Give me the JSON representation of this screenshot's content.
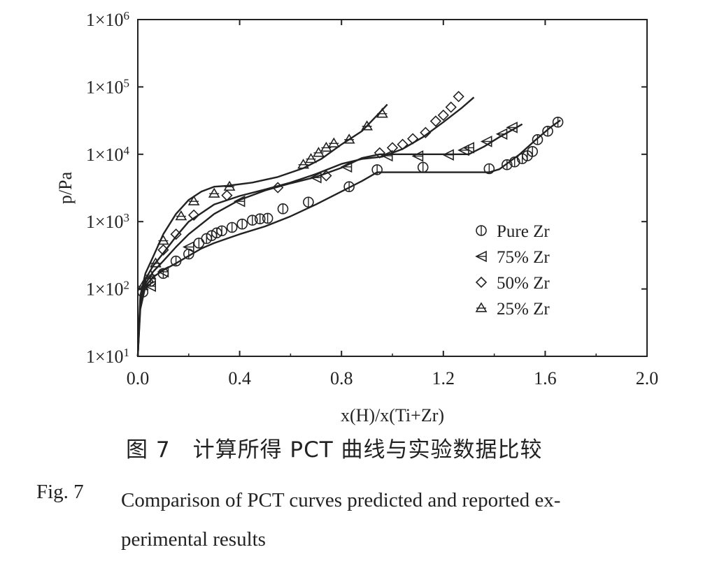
{
  "chart_data": {
    "type": "scatter",
    "xlabel": "x(H)/x(Ti+Zr)",
    "ylabel": "p/Pa",
    "xlim": [
      0.0,
      2.0
    ],
    "ylim": [
      10,
      1000000
    ],
    "yscale": "log",
    "x_ticks": [
      "0.0",
      "0.4",
      "0.8",
      "1.2",
      "1.6",
      "2.0"
    ],
    "y_ticks": [
      {
        "base": "1×10",
        "exp": "1"
      },
      {
        "base": "1×10",
        "exp": "2"
      },
      {
        "base": "1×10",
        "exp": "3"
      },
      {
        "base": "1×10",
        "exp": "4"
      },
      {
        "base": "1×10",
        "exp": "5"
      },
      {
        "base": "1×10",
        "exp": "6"
      }
    ],
    "legend_position": "right",
    "series": [
      {
        "name": "Pure Zr",
        "marker": "circle",
        "points": [
          [
            0.02,
            90
          ],
          [
            0.05,
            130
          ],
          [
            0.1,
            170
          ],
          [
            0.15,
            260
          ],
          [
            0.2,
            330
          ],
          [
            0.24,
            480
          ],
          [
            0.27,
            560
          ],
          [
            0.29,
            620
          ],
          [
            0.31,
            680
          ],
          [
            0.33,
            730
          ],
          [
            0.37,
            820
          ],
          [
            0.41,
            920
          ],
          [
            0.45,
            1050
          ],
          [
            0.48,
            1100
          ],
          [
            0.51,
            1120
          ],
          [
            0.57,
            1550
          ],
          [
            0.67,
            1950
          ],
          [
            0.83,
            3300
          ],
          [
            0.94,
            5900
          ],
          [
            1.12,
            6400
          ],
          [
            1.38,
            6100
          ],
          [
            1.45,
            7000
          ],
          [
            1.48,
            7700
          ],
          [
            1.51,
            8600
          ],
          [
            1.53,
            9500
          ],
          [
            1.55,
            11000
          ],
          [
            1.57,
            16500
          ],
          [
            1.61,
            22000
          ],
          [
            1.65,
            30000
          ]
        ],
        "curve": [
          [
            0.0,
            10
          ],
          [
            0.01,
            50
          ],
          [
            0.03,
            110
          ],
          [
            0.06,
            150
          ],
          [
            0.1,
            190
          ],
          [
            0.15,
            240
          ],
          [
            0.2,
            310
          ],
          [
            0.25,
            400
          ],
          [
            0.3,
            480
          ],
          [
            0.35,
            560
          ],
          [
            0.4,
            650
          ],
          [
            0.5,
            850
          ],
          [
            0.6,
            1200
          ],
          [
            0.7,
            1800
          ],
          [
            0.8,
            2800
          ],
          [
            0.88,
            4000
          ],
          [
            0.94,
            5400
          ],
          [
            1.0,
            5400
          ],
          [
            1.2,
            5400
          ],
          [
            1.38,
            5400
          ],
          [
            1.42,
            6000
          ],
          [
            1.5,
            10000
          ],
          [
            1.56,
            16000
          ],
          [
            1.62,
            25000
          ],
          [
            1.66,
            32000
          ]
        ]
      },
      {
        "name": "75% Zr",
        "marker": "triangle-left",
        "points": [
          [
            0.05,
            110
          ],
          [
            0.1,
            180
          ],
          [
            0.2,
            420
          ],
          [
            0.4,
            2000
          ],
          [
            0.7,
            4500
          ],
          [
            0.82,
            6500
          ],
          [
            0.98,
            9500
          ],
          [
            1.1,
            9400
          ],
          [
            1.22,
            9800
          ],
          [
            1.28,
            11500
          ],
          [
            1.3,
            12500
          ],
          [
            1.37,
            15500
          ],
          [
            1.43,
            20000
          ],
          [
            1.47,
            25000
          ]
        ],
        "curve": [
          [
            0.0,
            10
          ],
          [
            0.01,
            60
          ],
          [
            0.03,
            120
          ],
          [
            0.06,
            180
          ],
          [
            0.1,
            260
          ],
          [
            0.15,
            420
          ],
          [
            0.2,
            650
          ],
          [
            0.3,
            1300
          ],
          [
            0.4,
            2100
          ],
          [
            0.5,
            2900
          ],
          [
            0.6,
            3700
          ],
          [
            0.7,
            4600
          ],
          [
            0.8,
            6300
          ],
          [
            0.88,
            8800
          ],
          [
            0.95,
            10000
          ],
          [
            1.1,
            10000
          ],
          [
            1.3,
            10000
          ],
          [
            1.36,
            13000
          ],
          [
            1.42,
            18000
          ],
          [
            1.48,
            24000
          ],
          [
            1.51,
            28000
          ]
        ]
      },
      {
        "name": "50% Zr",
        "marker": "diamond",
        "points": [
          [
            0.04,
            130
          ],
          [
            0.1,
            380
          ],
          [
            0.15,
            650
          ],
          [
            0.22,
            1250
          ],
          [
            0.35,
            2450
          ],
          [
            0.55,
            3200
          ],
          [
            0.74,
            4800
          ],
          [
            0.95,
            10500
          ],
          [
            1.0,
            12500
          ],
          [
            1.04,
            14000
          ],
          [
            1.08,
            17000
          ],
          [
            1.13,
            21000
          ],
          [
            1.17,
            31000
          ],
          [
            1.2,
            38000
          ],
          [
            1.23,
            50000
          ],
          [
            1.26,
            72000
          ]
        ],
        "curve": [
          [
            0.0,
            10
          ],
          [
            0.01,
            70
          ],
          [
            0.03,
            140
          ],
          [
            0.06,
            220
          ],
          [
            0.1,
            340
          ],
          [
            0.15,
            600
          ],
          [
            0.2,
            1000
          ],
          [
            0.3,
            1800
          ],
          [
            0.4,
            2400
          ],
          [
            0.5,
            3000
          ],
          [
            0.6,
            3800
          ],
          [
            0.7,
            5100
          ],
          [
            0.8,
            7200
          ],
          [
            0.88,
            8500
          ],
          [
            0.96,
            9200
          ],
          [
            1.04,
            12000
          ],
          [
            1.12,
            18000
          ],
          [
            1.2,
            30000
          ],
          [
            1.27,
            48000
          ],
          [
            1.32,
            70000
          ]
        ]
      },
      {
        "name": "25% Zr",
        "marker": "triangle-up",
        "points": [
          [
            0.02,
            110
          ],
          [
            0.05,
            160
          ],
          [
            0.07,
            240
          ],
          [
            0.1,
            520
          ],
          [
            0.17,
            1200
          ],
          [
            0.22,
            2000
          ],
          [
            0.3,
            2600
          ],
          [
            0.36,
            3300
          ],
          [
            0.65,
            7000
          ],
          [
            0.68,
            8500
          ],
          [
            0.71,
            10500
          ],
          [
            0.74,
            12500
          ],
          [
            0.77,
            14500
          ],
          [
            0.83,
            16500
          ],
          [
            0.9,
            26000
          ],
          [
            0.96,
            40000
          ]
        ],
        "curve": [
          [
            0.0,
            10
          ],
          [
            0.01,
            80
          ],
          [
            0.03,
            170
          ],
          [
            0.06,
            300
          ],
          [
            0.1,
            650
          ],
          [
            0.15,
            1300
          ],
          [
            0.2,
            2100
          ],
          [
            0.25,
            2800
          ],
          [
            0.3,
            3300
          ],
          [
            0.35,
            3400
          ],
          [
            0.45,
            3800
          ],
          [
            0.55,
            4600
          ],
          [
            0.65,
            6200
          ],
          [
            0.72,
            8500
          ],
          [
            0.8,
            14000
          ],
          [
            0.88,
            22000
          ],
          [
            0.94,
            38000
          ],
          [
            0.98,
            55000
          ]
        ]
      }
    ]
  },
  "caption": {
    "cn": "图 7　计算所得 PCT 曲线与实验数据比较",
    "en_label": "Fig. 7",
    "en_text": "Comparison of PCT curves predicted and reported ex-\nperimental results"
  }
}
